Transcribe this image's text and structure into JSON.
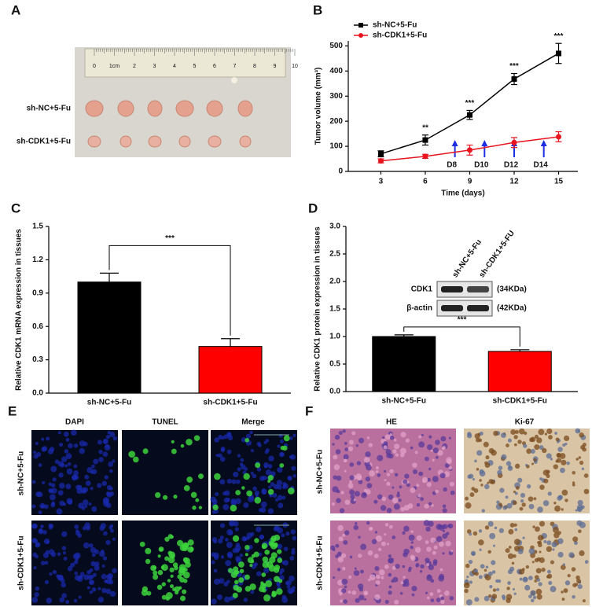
{
  "panel_a": {
    "letter": "A",
    "ruler": [
      "0",
      "1cm",
      "2",
      "3",
      "4",
      "5",
      "6",
      "7",
      "8",
      "9",
      "10"
    ],
    "rows": [
      "sh-NC+5-Fu",
      "sh-CDK1+5-Fu"
    ]
  },
  "chart_data": [
    {
      "type": "line",
      "panel": "B",
      "xlabel": "Time (days)",
      "ylabel": "Tumor volume (mm³)",
      "x": [
        3,
        6,
        9,
        12,
        15
      ],
      "xlim": [
        0.8,
        16.3
      ],
      "xticks": [
        3,
        6,
        9,
        12,
        15
      ],
      "ylim": [
        0,
        520
      ],
      "yticks": [
        0,
        100,
        200,
        300,
        400,
        500
      ],
      "series": [
        {
          "name": "sh-NC+5-Fu",
          "color": "#000000",
          "marker": "square",
          "values": [
            70,
            125,
            225,
            368,
            470
          ],
          "errors": [
            12,
            20,
            18,
            22,
            40
          ]
        },
        {
          "name": "sh-CDK1+5-Fu",
          "color": "#e8141e",
          "marker": "circle",
          "values": [
            42,
            60,
            85,
            115,
            138
          ],
          "errors": [
            8,
            8,
            20,
            20,
            20
          ]
        }
      ],
      "significance": [
        {
          "x": 6,
          "label": "**"
        },
        {
          "x": 9,
          "label": "***"
        },
        {
          "x": 12,
          "label": "***"
        },
        {
          "x": 15,
          "label": "***"
        }
      ],
      "arrows": [
        {
          "x": 8,
          "label": "D8"
        },
        {
          "x": 10,
          "label": "D10"
        },
        {
          "x": 12,
          "label": "D12"
        },
        {
          "x": 14,
          "label": "D14"
        }
      ]
    },
    {
      "type": "bar",
      "panel": "C",
      "ylabel": "Relative CDK1 mRNA expression  in tissues",
      "categories": [
        "sh-NC+5-Fu",
        "sh-CDK1+5-Fu"
      ],
      "values": [
        1.0,
        0.42
      ],
      "errors": [
        0.08,
        0.07
      ],
      "colors": [
        "#000000",
        "#ff0000"
      ],
      "ylim": [
        0,
        1.5
      ],
      "yticks": [
        {
          "value": 0,
          "label": "0.0"
        },
        0.3,
        0.6,
        0.9,
        1.2,
        1.5
      ],
      "significance": "***"
    },
    {
      "type": "bar",
      "panel": "D",
      "ylabel": "Relative CDK1 protein expression  in tissues",
      "categories": [
        "sh-NC+5-Fu",
        "sh-CDK1+5-Fu"
      ],
      "values": [
        1.0,
        0.73
      ],
      "errors": [
        0.03,
        0.03
      ],
      "colors": [
        "#000000",
        "#ff0000"
      ],
      "ylim": [
        0,
        3
      ],
      "yticks": [
        {
          "value": 0,
          "label": "0.0"
        },
        0.5,
        {
          "value": 1,
          "label": "1.0"
        },
        1.5,
        {
          "value": 2,
          "label": "2.0"
        },
        2.5,
        {
          "value": 3,
          "label": "3.0"
        }
      ],
      "significance": "***",
      "blot": {
        "lanes": [
          "sh-NC+5-Fu",
          "sh-CDK1+5-FU"
        ],
        "bands": [
          {
            "label": "CDK1",
            "size": "(34KDa)"
          },
          {
            "label": "β-actin",
            "size": "(42KDa)"
          }
        ]
      }
    }
  ],
  "panel_e": {
    "letter": "E",
    "columns": [
      "DAPI",
      "TUNEL",
      "Merge"
    ],
    "rows": [
      "sh-NC+5-Fu",
      "sh-CDK1+5-Fu"
    ]
  },
  "panel_f": {
    "letter": "F",
    "columns": [
      "HE",
      "Ki-67"
    ],
    "rows": [
      "sh-NC+5-Fu",
      "sh-CDK1+5-Fu"
    ]
  }
}
